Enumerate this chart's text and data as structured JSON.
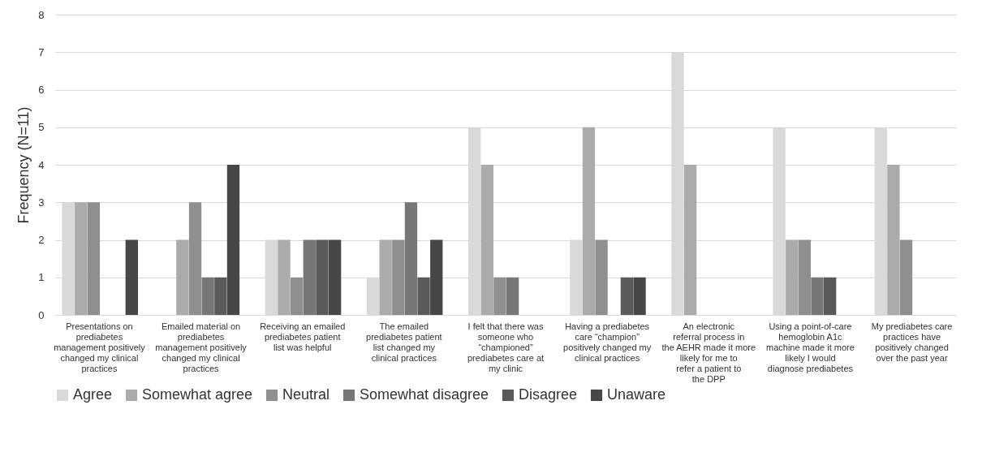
{
  "chart_data": {
    "type": "bar",
    "ylabel": "Frequency (N=11)",
    "categories": [
      "Presentations on prediabetes management positively changed my clinical practices",
      "Emailed material on prediabetes management positively changed my clinical practices",
      "Receiving an emailed prediabetes patient list was helpful",
      "The emailed prediabetes patient list changed my clinical practices",
      "I felt that there was someone who “championed” prediabetes care at my clinic",
      "Having a prediabetes care “champion” positively changed my clinical practices",
      "An electronic referral process in the AEHR made it more likely for me to refer a patient to the DPP",
      "Using a point-of-care hemoglobin A1c machine made it more likely I would diagnose prediabetes",
      "My prediabetes care practices have positively changed over the past year"
    ],
    "series": [
      {
        "name": "Agree",
        "color": "#d9d9d9",
        "values": [
          3,
          0,
          2,
          1,
          5,
          2,
          7,
          5,
          5
        ]
      },
      {
        "name": "Somewhat agree",
        "color": "#ababab",
        "values": [
          3,
          2,
          2,
          2,
          4,
          5,
          4,
          2,
          4
        ]
      },
      {
        "name": "Neutral",
        "color": "#8f8f8f",
        "values": [
          3,
          3,
          1,
          2,
          1,
          2,
          0,
          2,
          2
        ]
      },
      {
        "name": "Somewhat disagree",
        "color": "#777777",
        "values": [
          0,
          1,
          2,
          3,
          1,
          0,
          0,
          1,
          0
        ]
      },
      {
        "name": "Disagree",
        "color": "#5a5a5a",
        "values": [
          0,
          1,
          2,
          1,
          0,
          1,
          0,
          1,
          0
        ]
      },
      {
        "name": "Unaware",
        "color": "#474747",
        "values": [
          2,
          4,
          2,
          2,
          0,
          1,
          0,
          0,
          0
        ]
      }
    ],
    "ylim": [
      0,
      8
    ],
    "yticks": [
      0,
      1,
      2,
      3,
      4,
      5,
      6,
      7,
      8
    ],
    "grid": "y",
    "legend": "bottom"
  }
}
